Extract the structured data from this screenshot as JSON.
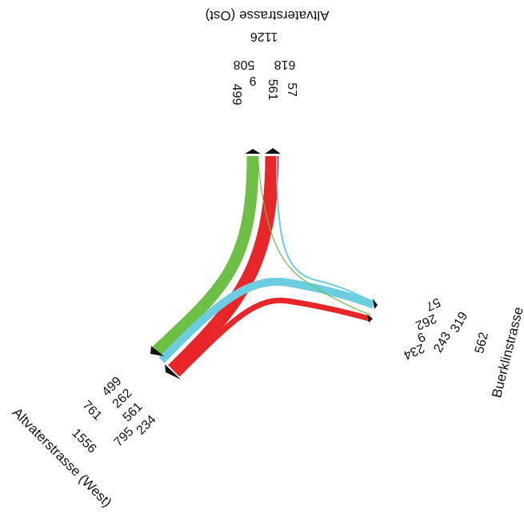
{
  "colors": {
    "red": "#e8262a",
    "green": "#6dbf45",
    "blue": "#6ccde0",
    "marker": "#111111"
  },
  "arms": {
    "north": {
      "name": "Altvaterstrasse (Ost)",
      "total": "1126",
      "subtotal_in": "618",
      "subtotal_out": "508",
      "flow_to_west_red": "561",
      "flow_to_buerklin_blue": "57",
      "flow_to_west_green": "499",
      "flow_to_buerklin_green": "9"
    },
    "east": {
      "name": "Buerklinstrasse",
      "total": "562",
      "subtotal_a": "319",
      "subtotal_b": "243",
      "flow_57": "57",
      "flow_262": "262",
      "flow_9": "9",
      "flow_234": "234"
    },
    "west": {
      "name": "Altvaterstrasse (West)",
      "total": "1556",
      "subtotal_a": "761",
      "subtotal_b": "795",
      "flow_499": "499",
      "flow_262": "262",
      "flow_561": "561",
      "flow_234": "234"
    }
  }
}
